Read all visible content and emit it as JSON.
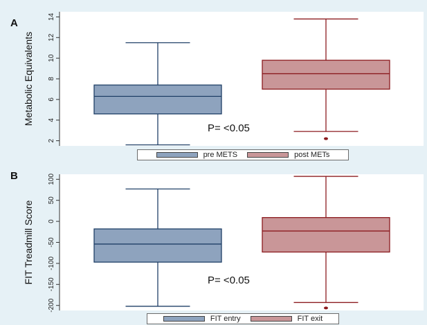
{
  "panels": [
    {
      "letter": "A",
      "annotation": "P= <0.05"
    },
    {
      "letter": "B",
      "annotation": "P= <0.05"
    }
  ],
  "colors": {
    "blue_fill": "#8ea3be",
    "blue_line": "#1f3f66",
    "red_fill": "#c99698",
    "red_line": "#8b1a1e",
    "plot_bg": "#ffffff",
    "page_bg": "#e6f1f6"
  },
  "chart_data": [
    {
      "type": "box",
      "title": "",
      "xlabel": "",
      "ylabel": "Metabolic Equivalents",
      "ylim": [
        1.5,
        14.5
      ],
      "yticks": [
        2,
        4,
        6,
        8,
        10,
        12,
        14
      ],
      "grid": false,
      "legend_position": "bottom",
      "series": [
        {
          "name": "pre METS",
          "whisker_low": 1.6,
          "q1": 4.6,
          "median": 6.3,
          "q3": 7.4,
          "whisker_high": 11.5,
          "outliers": []
        },
        {
          "name": "post METs",
          "whisker_low": 2.9,
          "q1": 7.0,
          "median": 8.5,
          "q3": 9.8,
          "whisker_high": 13.8,
          "outliers": [
            2.2
          ]
        }
      ]
    },
    {
      "type": "box",
      "title": "",
      "xlabel": "",
      "ylabel": "FIT Treadmill Score",
      "ylim": [
        -212,
        112
      ],
      "yticks": [
        -200,
        -150,
        -100,
        -50,
        0,
        50,
        100
      ],
      "grid": false,
      "legend_position": "bottom",
      "series": [
        {
          "name": "FIT entry",
          "whisker_low": -202,
          "q1": -97,
          "median": -54,
          "q3": -18,
          "whisker_high": 77,
          "outliers": []
        },
        {
          "name": "FIT exit",
          "whisker_low": -193,
          "q1": -73,
          "median": -23,
          "q3": 9,
          "whisker_high": 107,
          "outliers": [
            -206
          ]
        }
      ]
    }
  ]
}
